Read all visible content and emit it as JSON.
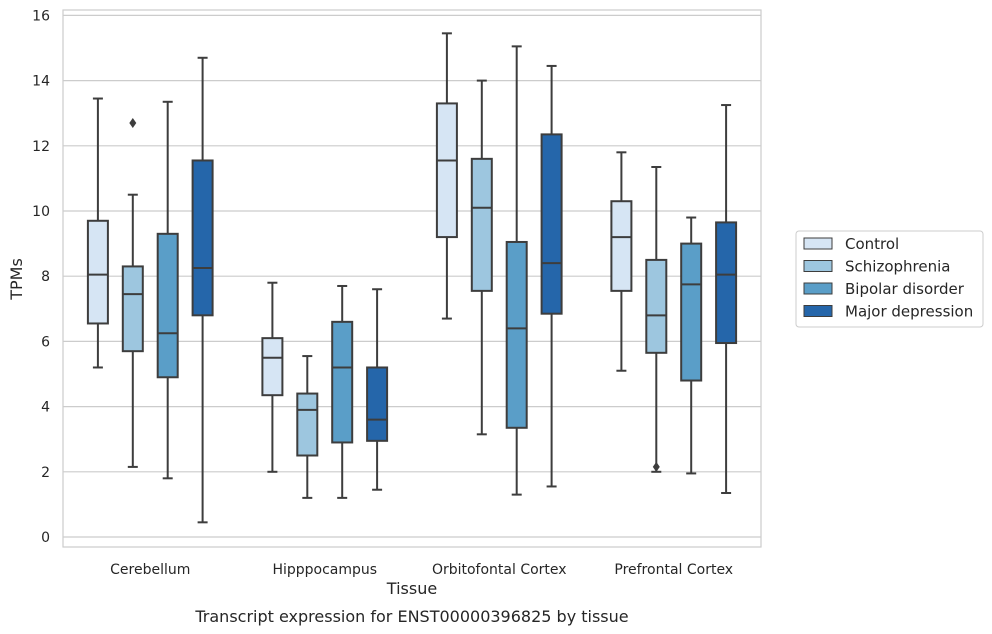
{
  "chart_data": {
    "type": "boxplot",
    "caption": "Transcript expression for ENST00000396825 by tissue",
    "xlabel": "Tissue",
    "ylabel": "TPMs",
    "ylim": [
      -0.3,
      16.2
    ],
    "yticks": [
      0,
      2,
      4,
      6,
      8,
      10,
      12,
      14,
      16
    ],
    "categories": [
      "Cerebellum",
      "Hipppocampus",
      "Orbitofontal Cortex",
      "Prefrontal Cortex"
    ],
    "grid": true,
    "legend_position": "right",
    "series": [
      {
        "name": "Control",
        "color": "#d6e5f4",
        "boxes": [
          {
            "whislo": 5.2,
            "q1": 6.55,
            "med": 8.05,
            "q3": 9.7,
            "whishi": 13.45,
            "fliers": []
          },
          {
            "whislo": 2.0,
            "q1": 4.35,
            "med": 5.5,
            "q3": 6.1,
            "whishi": 7.8,
            "fliers": []
          },
          {
            "whislo": 6.7,
            "q1": 9.2,
            "med": 11.55,
            "q3": 13.3,
            "whishi": 15.45,
            "fliers": []
          },
          {
            "whislo": 5.1,
            "q1": 7.55,
            "med": 9.2,
            "q3": 10.3,
            "whishi": 11.8,
            "fliers": []
          }
        ]
      },
      {
        "name": "Schizophrenia",
        "color": "#9dc6df",
        "boxes": [
          {
            "whislo": 2.15,
            "q1": 5.7,
            "med": 7.45,
            "q3": 8.3,
            "whishi": 10.5,
            "fliers": [
              12.7
            ]
          },
          {
            "whislo": 1.2,
            "q1": 2.5,
            "med": 3.9,
            "q3": 4.4,
            "whishi": 5.55,
            "fliers": []
          },
          {
            "whislo": 3.15,
            "q1": 7.55,
            "med": 10.1,
            "q3": 11.6,
            "whishi": 14.0,
            "fliers": []
          },
          {
            "whislo": 2.0,
            "q1": 5.65,
            "med": 6.8,
            "q3": 8.5,
            "whishi": 11.35,
            "fliers": [
              2.15
            ]
          }
        ]
      },
      {
        "name": "Bipolar disorder",
        "color": "#5a9ec8",
        "boxes": [
          {
            "whislo": 1.8,
            "q1": 4.9,
            "med": 6.25,
            "q3": 9.3,
            "whishi": 13.35,
            "fliers": []
          },
          {
            "whislo": 1.2,
            "q1": 2.9,
            "med": 5.2,
            "q3": 6.6,
            "whishi": 7.7,
            "fliers": []
          },
          {
            "whislo": 1.3,
            "q1": 3.35,
            "med": 6.4,
            "q3": 9.05,
            "whishi": 15.05,
            "fliers": []
          },
          {
            "whislo": 1.95,
            "q1": 4.8,
            "med": 7.75,
            "q3": 9.0,
            "whishi": 9.8,
            "fliers": []
          }
        ]
      },
      {
        "name": "Major depression",
        "color": "#2566aa",
        "boxes": [
          {
            "whislo": 0.45,
            "q1": 6.8,
            "med": 8.25,
            "q3": 11.55,
            "whishi": 14.7,
            "fliers": []
          },
          {
            "whislo": 1.45,
            "q1": 2.95,
            "med": 3.6,
            "q3": 5.2,
            "whishi": 7.6,
            "fliers": []
          },
          {
            "whislo": 1.55,
            "q1": 6.85,
            "med": 8.4,
            "q3": 12.35,
            "whishi": 14.45,
            "fliers": []
          },
          {
            "whislo": 1.35,
            "q1": 5.95,
            "med": 8.05,
            "q3": 9.65,
            "whishi": 13.25,
            "fliers": []
          }
        ]
      }
    ]
  }
}
